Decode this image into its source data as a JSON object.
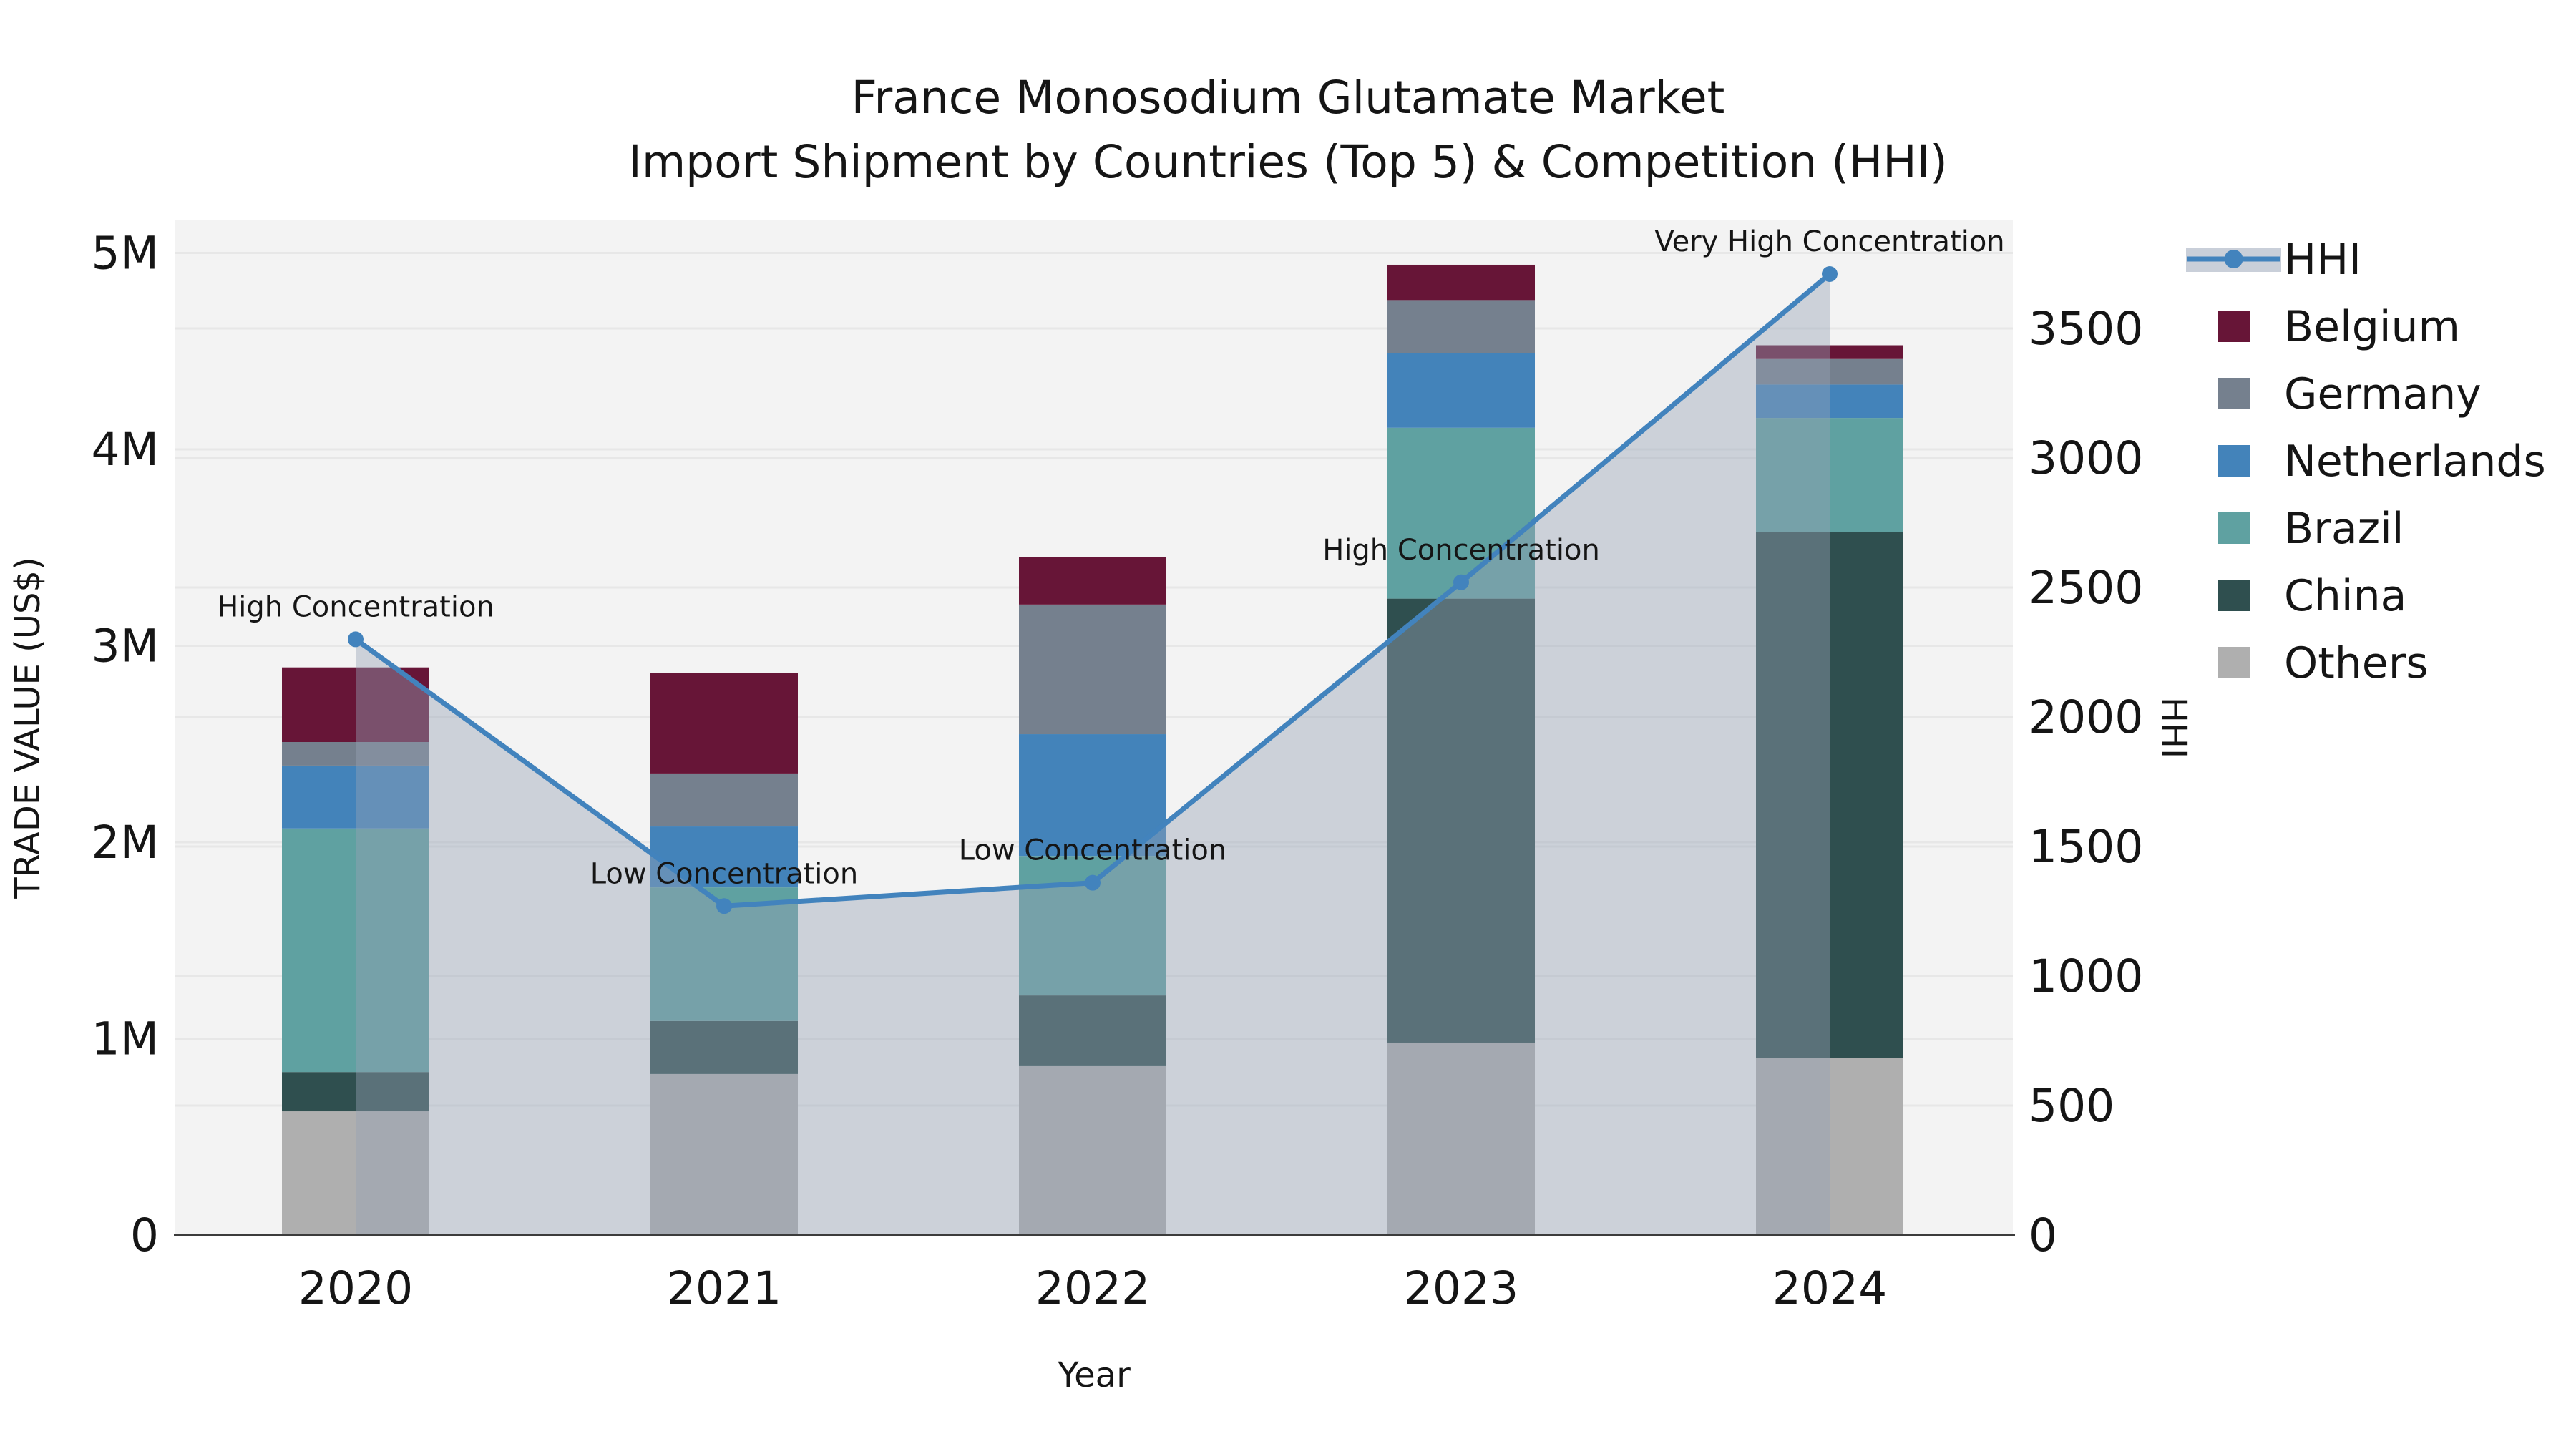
{
  "title": {
    "line1": "France Monosodium Glutamate Market",
    "line2": "Import Shipment by Countries (Top 5) & Competition (HHI)"
  },
  "axes": {
    "x": {
      "label": "Year",
      "tick_labels": [
        "2020",
        "2021",
        "2022",
        "2023",
        "2024"
      ]
    },
    "left": {
      "label": "TRADE VALUE (US$)",
      "tick_labels": [
        "0",
        "1M",
        "2M",
        "3M",
        "4M",
        "5M"
      ],
      "tick_values_million_usd": [
        0,
        1,
        2,
        3,
        4,
        5
      ]
    },
    "right": {
      "label": "HHI",
      "tick_labels": [
        "0",
        "500",
        "1000",
        "1500",
        "2000",
        "2500",
        "3000",
        "3500"
      ],
      "tick_values": [
        0,
        500,
        1000,
        1500,
        2000,
        2500,
        3000,
        3500
      ]
    }
  },
  "legend": {
    "position": "right",
    "items": [
      {
        "label": "HHI",
        "type": "line",
        "color": "#4283BD"
      },
      {
        "label": "Belgium",
        "type": "swatch",
        "color": "#671537"
      },
      {
        "label": "Germany",
        "type": "swatch",
        "color": "#75808E"
      },
      {
        "label": "Netherlands",
        "type": "swatch",
        "color": "#4383BA"
      },
      {
        "label": "Brazil",
        "type": "swatch",
        "color": "#5FA1A1"
      },
      {
        "label": "China",
        "type": "swatch",
        "color": "#2F4F4F"
      },
      {
        "label": "Others",
        "type": "swatch",
        "color": "#AFAFAF"
      }
    ]
  },
  "chart_data": {
    "type": "bar",
    "subtype": "stacked-bars-with-secondary-axis-line",
    "title": "France Monosodium Glutamate Market — Import Shipment by Countries (Top 5) & Competition (HHI)",
    "xlabel": "Year",
    "ylabel_left": "TRADE VALUE (US$)",
    "ylabel_right": "HHI",
    "categories": [
      "2020",
      "2021",
      "2022",
      "2023",
      "2024"
    ],
    "bar_unit": "million US$",
    "stack_order_bottom_to_top": [
      "Others",
      "China",
      "Brazil",
      "Netherlands",
      "Germany",
      "Belgium"
    ],
    "series": [
      {
        "name": "Belgium",
        "color": "#671537",
        "values": [
          0.38,
          0.51,
          0.24,
          0.18,
          0.07
        ]
      },
      {
        "name": "Germany",
        "color": "#75808E",
        "values": [
          0.12,
          0.27,
          0.66,
          0.27,
          0.13
        ]
      },
      {
        "name": "Netherlands",
        "color": "#4383BA",
        "values": [
          0.32,
          0.31,
          0.62,
          0.38,
          0.17
        ]
      },
      {
        "name": "Brazil",
        "color": "#5FA1A1",
        "values": [
          1.24,
          0.68,
          0.71,
          0.87,
          0.58
        ]
      },
      {
        "name": "China",
        "color": "#2F4F4F",
        "values": [
          0.2,
          0.27,
          0.36,
          2.26,
          2.68
        ]
      },
      {
        "name": "Others",
        "color": "#AFAFAF",
        "values": [
          0.63,
          0.82,
          0.86,
          0.98,
          0.9
        ]
      }
    ],
    "bar_totals_million_usd": [
      2.89,
      2.86,
      3.45,
      4.94,
      4.53
    ],
    "line_series": {
      "name": "HHI",
      "axis": "right",
      "color": "#4283BD",
      "area_fill": true,
      "values": [
        2300,
        1270,
        1360,
        2520,
        3710
      ]
    },
    "annotations": [
      {
        "category": "2020",
        "text": "High Concentration"
      },
      {
        "category": "2021",
        "text": "Low Concentration"
      },
      {
        "category": "2022",
        "text": "Low Concentration"
      },
      {
        "category": "2023",
        "text": "High Concentration"
      },
      {
        "category": "2024",
        "text": "Very High Concentration"
      }
    ],
    "ylim_left_million_usd": [
      0,
      5.16
    ],
    "ylim_right_hhi": [
      0,
      3912
    ],
    "grid": true,
    "legend_position": "right"
  },
  "colors": {
    "figure_background": "#FFFFFF",
    "plot_background": "#F3F3F3",
    "gridline": "#E7E7E7",
    "axis_line": "#3C3C3C",
    "hhi_line": "#4283BD",
    "hhi_area_fill": "rgba(150,162,182,0.42)",
    "annotation_text": "#111111"
  }
}
